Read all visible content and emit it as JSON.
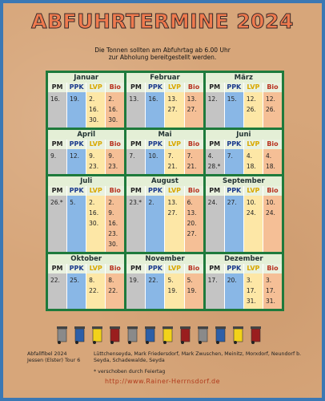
{
  "header": {
    "title": "ABFUHRTERMINE 2024",
    "subtitle_lines": [
      "Die Tonnen sollten am Abfuhrtag ab 6.00 Uhr",
      "zur Abholung bereitgestellt werden."
    ]
  },
  "columns": [
    "PM",
    "PPK",
    "LVP",
    "Bio"
  ],
  "months": [
    {
      "name": "Januar",
      "dates": [
        [
          "16."
        ],
        [
          "19."
        ],
        [
          "2.",
          "16.",
          "30."
        ],
        [
          "2.",
          "16.",
          "30."
        ]
      ]
    },
    {
      "name": "Februar",
      "dates": [
        [
          "13."
        ],
        [
          "16."
        ],
        [
          "13.",
          "27."
        ],
        [
          "13.",
          "27."
        ]
      ]
    },
    {
      "name": "März",
      "dates": [
        [
          "12."
        ],
        [
          "15."
        ],
        [
          "12.",
          "26."
        ],
        [
          "12.",
          "26."
        ]
      ]
    },
    {
      "name": "April",
      "dates": [
        [
          "9."
        ],
        [
          "12."
        ],
        [
          "9.",
          "23."
        ],
        [
          "9.",
          "23."
        ]
      ]
    },
    {
      "name": "Mai",
      "dates": [
        [
          "7."
        ],
        [
          "10."
        ],
        [
          "7.",
          "21."
        ],
        [
          "7.",
          "21."
        ]
      ]
    },
    {
      "name": "Juni",
      "dates": [
        [
          "4.",
          "28.*"
        ],
        [
          "7."
        ],
        [
          "4.",
          "18."
        ],
        [
          "4.",
          "18."
        ]
      ]
    },
    {
      "name": "Juli",
      "dates": [
        [
          "26.*"
        ],
        [
          "5."
        ],
        [
          "2.",
          "16.",
          "30."
        ],
        [
          "2.",
          "9.",
          "16.",
          "23.",
          "30."
        ]
      ]
    },
    {
      "name": "August",
      "dates": [
        [
          "23.*"
        ],
        [
          "2."
        ],
        [
          "13.",
          "27."
        ],
        [
          "6.",
          "13.",
          "20.",
          "27."
        ]
      ]
    },
    {
      "name": "September",
      "dates": [
        [
          "24."
        ],
        [
          "27."
        ],
        [
          "10.",
          "24."
        ],
        [
          "10.",
          "24."
        ]
      ]
    },
    {
      "name": "Oktober",
      "dates": [
        [
          "22."
        ],
        [
          "25."
        ],
        [
          "8.",
          "22."
        ],
        [
          "8.",
          "22."
        ]
      ]
    },
    {
      "name": "November",
      "dates": [
        [
          "19."
        ],
        [
          "22."
        ],
        [
          "5.",
          "19."
        ],
        [
          "5.",
          "19."
        ]
      ]
    },
    {
      "name": "Dezember",
      "dates": [
        [
          "17."
        ],
        [
          "20."
        ],
        [
          "3.",
          "17.",
          "31."
        ],
        [
          "3.",
          "17.",
          "31."
        ]
      ]
    }
  ],
  "footer": {
    "source": "Abfallfibel 2024",
    "tour": "Jessen (Elster) Tour 6",
    "places": "Lüttchenseyda, Mark Friedersdorf, Mark Zwuschen, Meinitz, Morxdorf, Neundorf b. Seyda, Schadewalde, Seyda",
    "note": "* verschoben durch Feiertag",
    "url": "http://www.Rainer-Herrnsdorf.de"
  }
}
